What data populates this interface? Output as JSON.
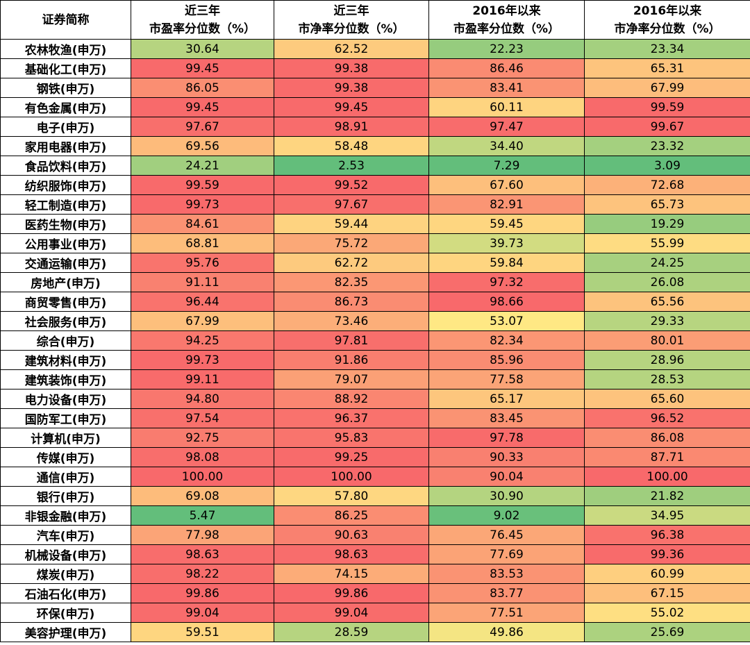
{
  "chart_data": {
    "type": "table",
    "columns": [
      {
        "lines": [
          "证券简称"
        ]
      },
      {
        "lines": [
          "近三年",
          "市盈率分位数（%）"
        ]
      },
      {
        "lines": [
          "近三年",
          "市净率分位数（%）"
        ]
      },
      {
        "lines": [
          "2016年以来",
          "市盈率分位数（%）"
        ]
      },
      {
        "lines": [
          "2016年以来",
          "市净率分位数（%）"
        ]
      }
    ],
    "rows": [
      {
        "name": "农林牧渔(申万)",
        "values": [
          "30.64",
          "62.52",
          "22.23",
          "23.34"
        ]
      },
      {
        "name": "基础化工(申万)",
        "values": [
          "99.45",
          "99.38",
          "86.46",
          "65.31"
        ]
      },
      {
        "name": "钢铁(申万)",
        "values": [
          "86.05",
          "99.38",
          "83.41",
          "67.99"
        ]
      },
      {
        "name": "有色金属(申万)",
        "values": [
          "99.45",
          "99.45",
          "60.11",
          "99.59"
        ]
      },
      {
        "name": "电子(申万)",
        "values": [
          "97.67",
          "98.91",
          "97.47",
          "99.67"
        ]
      },
      {
        "name": "家用电器(申万)",
        "values": [
          "69.56",
          "58.48",
          "34.40",
          "23.32"
        ]
      },
      {
        "name": "食品饮料(申万)",
        "values": [
          "24.21",
          "2.53",
          "7.29",
          "3.09"
        ]
      },
      {
        "name": "纺织服饰(申万)",
        "values": [
          "99.59",
          "99.52",
          "67.60",
          "72.68"
        ]
      },
      {
        "name": "轻工制造(申万)",
        "values": [
          "99.73",
          "97.67",
          "82.91",
          "65.73"
        ]
      },
      {
        "name": "医药生物(申万)",
        "values": [
          "84.61",
          "59.44",
          "59.45",
          "19.29"
        ]
      },
      {
        "name": "公用事业(申万)",
        "values": [
          "68.81",
          "75.72",
          "39.73",
          "55.99"
        ]
      },
      {
        "name": "交通运输(申万)",
        "values": [
          "95.76",
          "62.72",
          "59.84",
          "24.25"
        ]
      },
      {
        "name": "房地产(申万)",
        "values": [
          "91.11",
          "82.35",
          "97.32",
          "26.08"
        ]
      },
      {
        "name": "商贸零售(申万)",
        "values": [
          "96.44",
          "86.73",
          "98.66",
          "65.56"
        ]
      },
      {
        "name": "社会服务(申万)",
        "values": [
          "67.99",
          "73.46",
          "53.07",
          "29.33"
        ]
      },
      {
        "name": "综合(申万)",
        "values": [
          "94.25",
          "97.81",
          "82.34",
          "80.01"
        ]
      },
      {
        "name": "建筑材料(申万)",
        "values": [
          "99.73",
          "91.86",
          "85.96",
          "28.96"
        ]
      },
      {
        "name": "建筑装饰(申万)",
        "values": [
          "99.11",
          "79.07",
          "77.58",
          "28.53"
        ]
      },
      {
        "name": "电力设备(申万)",
        "values": [
          "94.80",
          "88.92",
          "65.17",
          "65.60"
        ]
      },
      {
        "name": "国防军工(申万)",
        "values": [
          "97.54",
          "96.37",
          "83.45",
          "96.52"
        ]
      },
      {
        "name": "计算机(申万)",
        "values": [
          "92.75",
          "95.83",
          "97.78",
          "86.08"
        ]
      },
      {
        "name": "传媒(申万)",
        "values": [
          "98.08",
          "99.25",
          "90.33",
          "87.71"
        ]
      },
      {
        "name": "通信(申万)",
        "values": [
          "100.00",
          "100.00",
          "90.04",
          "100.00"
        ]
      },
      {
        "name": "银行(申万)",
        "values": [
          "69.08",
          "57.80",
          "30.90",
          "21.82"
        ]
      },
      {
        "name": "非银金融(申万)",
        "values": [
          "5.47",
          "86.25",
          "9.02",
          "34.95"
        ]
      },
      {
        "name": "汽车(申万)",
        "values": [
          "77.98",
          "90.63",
          "76.45",
          "96.38"
        ]
      },
      {
        "name": "机械设备(申万)",
        "values": [
          "98.63",
          "98.63",
          "77.69",
          "99.36"
        ]
      },
      {
        "name": "煤炭(申万)",
        "values": [
          "98.22",
          "74.15",
          "83.53",
          "60.99"
        ]
      },
      {
        "name": "石油石化(申万)",
        "values": [
          "99.86",
          "99.86",
          "83.77",
          "67.15"
        ]
      },
      {
        "name": "环保(申万)",
        "values": [
          "99.04",
          "99.04",
          "77.51",
          "55.02"
        ]
      },
      {
        "name": "美容护理(申万)",
        "values": [
          "59.51",
          "28.59",
          "49.86",
          "25.69"
        ]
      }
    ],
    "color_scale": {
      "low": "#63be7b",
      "mid": "#ffe884",
      "high": "#f8696b"
    }
  }
}
